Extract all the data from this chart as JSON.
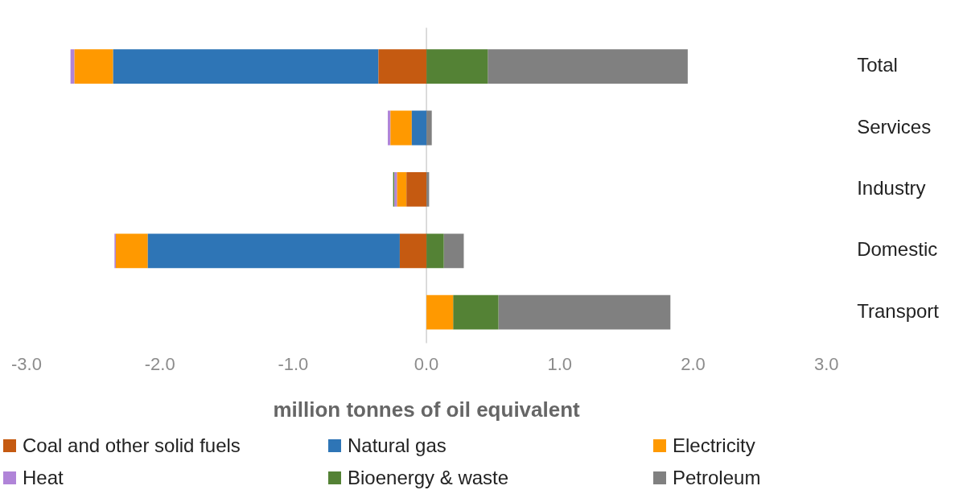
{
  "chart_data": {
    "type": "bar",
    "orientation": "horizontal",
    "stacked": true,
    "xlabel": "million tonnes of oil equivalent",
    "categories": [
      "Total",
      "Services",
      "Industry",
      "Domestic",
      "Transport"
    ],
    "series": [
      {
        "name": "Coal and other solid fuels",
        "color": "#c55a11",
        "values": [
          -0.36,
          0,
          -0.15,
          -0.2,
          0
        ]
      },
      {
        "name": "Natural gas",
        "color": "#2e75b6",
        "values": [
          -1.99,
          -0.11,
          0,
          -1.89,
          0
        ]
      },
      {
        "name": "Electricity",
        "color": "#ff9900",
        "values": [
          -0.29,
          -0.16,
          -0.07,
          -0.24,
          0.2
        ]
      },
      {
        "name": "Heat",
        "color": "#b084d8",
        "values": [
          -0.03,
          -0.02,
          -0.02,
          -0.01,
          0
        ]
      },
      {
        "name": "Bioenergy & waste",
        "color": "#548235",
        "values": [
          0.46,
          0,
          -0.01,
          0.13,
          0.34
        ]
      },
      {
        "name": "Petroleum",
        "color": "#808080",
        "values": [
          1.5,
          0.04,
          0.02,
          0.15,
          1.29
        ]
      }
    ],
    "xlim": [
      -3,
      3
    ],
    "xticks": [
      {
        "value": -3,
        "label": "-3.0"
      },
      {
        "value": -2,
        "label": "-2.0"
      },
      {
        "value": -1,
        "label": "-1.0"
      },
      {
        "value": 0,
        "label": "0.0"
      },
      {
        "value": 1,
        "label": "1.0"
      },
      {
        "value": 2,
        "label": "2.0"
      },
      {
        "value": 3,
        "label": "3.0"
      }
    ],
    "ref_lines": [
      {
        "axis": "x",
        "value": 0,
        "color": "#d0d0d0"
      }
    ],
    "grid": false,
    "legend": "bottom"
  }
}
